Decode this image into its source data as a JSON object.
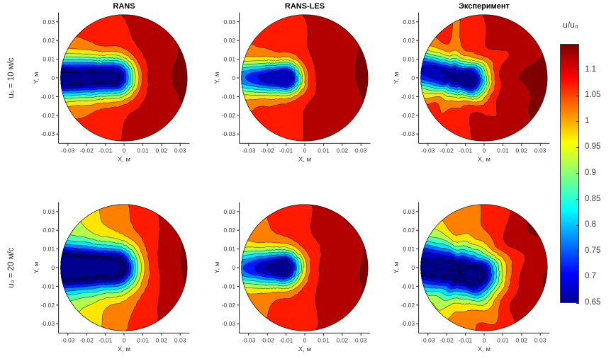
{
  "chart_data": {
    "type": "heatmap",
    "subtype": "filled-contour, circular duct cross-section, 2x3 panel grid",
    "columns": [
      "RANS",
      "RANS-LES",
      "Эксперимент"
    ],
    "rows": [
      "u₀ = 10 м/с",
      "u₀ = 20 м/с"
    ],
    "xlabel": "X, м",
    "ylabel": "Y, м",
    "xticks": [
      -0.03,
      -0.02,
      -0.01,
      0,
      0.01,
      0.02,
      0.03
    ],
    "yticks": [
      -0.03,
      -0.02,
      -0.01,
      0,
      0.01,
      0.02,
      0.03
    ],
    "xlim": [
      -0.035,
      0.035
    ],
    "ylim": [
      -0.035,
      0.035
    ],
    "duct_radius_m": 0.0338,
    "grid": false,
    "colorbar": {
      "title": "u/u₀",
      "ticks": [
        1.1,
        1.05,
        1,
        0.95,
        0.9,
        0.85,
        0.8,
        0.75,
        0.7,
        0.65
      ],
      "range": [
        0.65,
        1.15
      ],
      "colormap": "jet",
      "position": "right"
    },
    "contour_levels": [
      0.65,
      0.7,
      0.75,
      0.8,
      0.85,
      0.9,
      0.95,
      1.0,
      1.05,
      1.1,
      1.15
    ],
    "contour_render": {
      "levels": [
        0.57,
        0.59,
        0.61,
        0.63,
        0.65,
        0.7,
        0.75,
        0.8,
        0.85,
        0.9,
        0.95,
        1.0,
        1.05,
        1.1,
        1.15
      ],
      "fills": [
        "#00008f",
        "#00008f",
        "#00008f",
        "#00008f",
        "#00008f",
        "#0000bd",
        "#001aff",
        "#0080ff",
        "#00e6ff",
        "#4dffb3",
        "#b3ff4d",
        "#ffe600",
        "#ff8000",
        "#ff1a00",
        "#b30000"
      ],
      "background_fill": "#7f0000",
      "line_color": "rgba(0,0,0,0.6)"
    },
    "panels": [
      {
        "row": 0,
        "col": 0,
        "title": "RANS",
        "velocity": "u₀ = 10 м/с",
        "u_min": 0.65,
        "u_max": 1.15,
        "summary": "Smooth low-speed wake (u/u₀≈0.65) streak from left rim to x≈-0.005 m at y≈0; high-speed dark-red crescent u/u₀>1.1 on right half",
        "field": {
          "wake_a": [
            -0.036,
            0
          ],
          "wake_b": [
            -0.0045,
            0.0005
          ],
          "s": 0.0105,
          "depth": 0.5,
          "w_a": 0.93,
          "base": 1.1,
          "gx": 1.7,
          "gy": 0,
          "noise": 0.004,
          "nf1": 5,
          "np1": 1.0,
          "nf2": 9,
          "np2": 2.0
        }
      },
      {
        "row": 0,
        "col": 1,
        "title": "RANS-LES",
        "velocity": "u₀ = 10 м/с",
        "u_min": 0.65,
        "u_max": 1.15,
        "summary": "Compact round wake centered near x≈-0.013 m, y≈0 with narrow pinch to left rim; dark-red region over right two-thirds",
        "field": {
          "wake_a": [
            -0.036,
            0
          ],
          "wake_b": [
            -0.01,
            0
          ],
          "s": 0.0085,
          "depth": 0.5,
          "w_a": 0.52,
          "base": 1.1,
          "gx": 1.7,
          "gy": 0,
          "noise": 0.003,
          "nf1": 6,
          "np1": 0.5,
          "nf2": 10,
          "np2": 1.5
        }
      },
      {
        "row": 0,
        "col": 2,
        "title": "Эксперимент",
        "velocity": "u₀ = 10 м/с",
        "u_min": 0.65,
        "u_max": 1.15,
        "summary": "Jagged experimental wake on left-center (u/u₀≈0.65-0.8) with irregular contours; dark-red u/u₀>1.1 over right side",
        "field": {
          "wake_a": [
            -0.033,
            0.004
          ],
          "wake_b": [
            -0.007,
            -0.001
          ],
          "s": 0.0095,
          "depth": 0.49,
          "w_a": 0.75,
          "base": 1.1,
          "gx": 1.8,
          "gy": -0.3,
          "noise": 0.013,
          "nf1": 6,
          "np1": 2.2,
          "nf2": 11,
          "np2": 0.7
        }
      },
      {
        "row": 1,
        "col": 0,
        "title": "RANS",
        "velocity": "u₀ = 20 м/с",
        "u_min": 0.65,
        "u_max": 1.15,
        "summary": "Wider low-speed streak than at 10 м/с; orange band along top rim, dark-red crescent on right",
        "field": {
          "wake_a": [
            -0.036,
            0
          ],
          "wake_b": [
            -0.004,
            0
          ],
          "s": 0.0115,
          "depth": 0.5,
          "w_a": 0.93,
          "base": 1.04,
          "gx": 3.4,
          "gy": 0,
          "noise": 0.004,
          "nf1": 5,
          "np1": 1.3,
          "nf2": 9,
          "np2": 0.4
        }
      },
      {
        "row": 1,
        "col": 1,
        "title": "RANS-LES",
        "velocity": "u₀ = 20 м/с",
        "u_min": 0.65,
        "u_max": 1.15,
        "summary": "Compact round wake near x≈-0.013 m with pinch to left rim; dark-red region on right two-thirds",
        "field": {
          "wake_a": [
            -0.036,
            0
          ],
          "wake_b": [
            -0.011,
            0
          ],
          "s": 0.0095,
          "depth": 0.5,
          "w_a": 0.5,
          "base": 1.09,
          "gx": 1.9,
          "gy": 0,
          "noise": 0.003,
          "nf1": 6,
          "np1": 2.8,
          "nf2": 10,
          "np2": 1.1
        }
      },
      {
        "row": 1,
        "col": 2,
        "title": "Эксперимент",
        "velocity": "u₀ = 20 м/с",
        "u_min": 0.65,
        "u_max": 1.15,
        "summary": "Large jagged blue wake covering left half (u/u₀≈0.65-0.8); red/dark-red limited to right edge",
        "field": {
          "wake_a": [
            -0.031,
            0.001
          ],
          "wake_b": [
            -0.004,
            -0.004
          ],
          "s": 0.0125,
          "depth": 0.49,
          "w_a": 0.8,
          "base": 1.06,
          "gx": 2.8,
          "gy": 0.15,
          "noise": 0.014,
          "nf1": 6,
          "np1": 4.0,
          "nf2": 11,
          "np2": 1.9
        }
      }
    ]
  }
}
